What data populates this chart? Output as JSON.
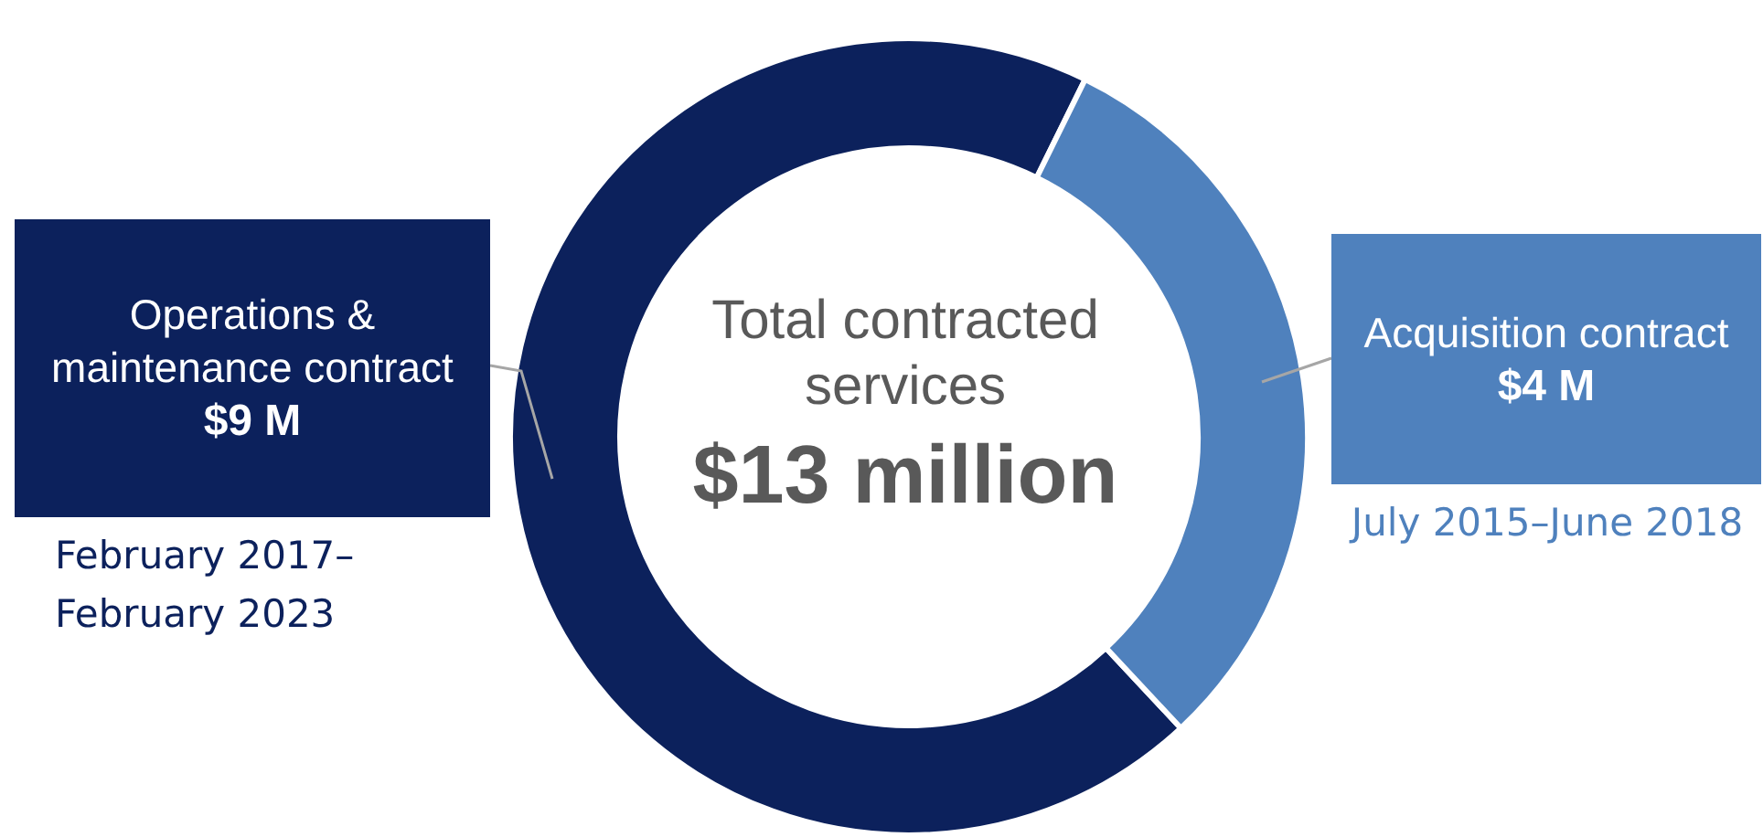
{
  "chart_data": {
    "type": "donut",
    "categories": [
      "Operations & maintenance contract",
      "Acquisition contract"
    ],
    "values": [
      9,
      4
    ],
    "value_labels": [
      "$9 M",
      "$4 M"
    ],
    "colors": [
      "#0c215c",
      "#4f81bd"
    ],
    "annotations": [
      "Total contracted services",
      "$13 million",
      "February 2017–February 2023",
      "July 2015–June 2018"
    ]
  }
}
